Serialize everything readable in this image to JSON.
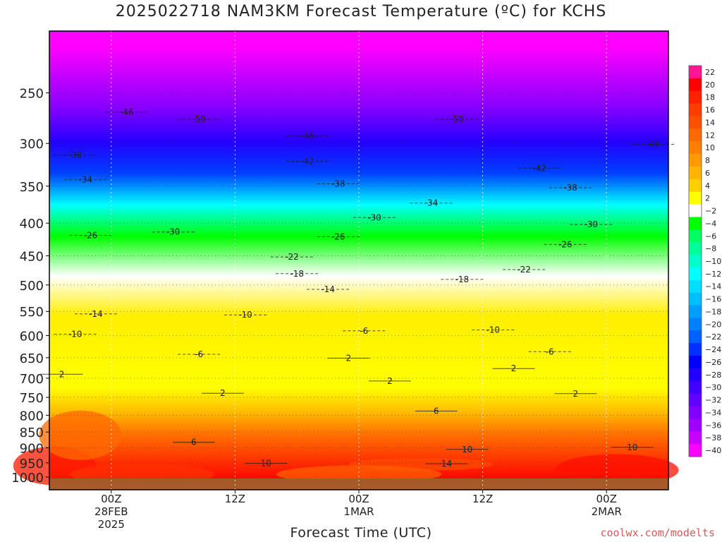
{
  "title": "2025022718 NAM3KM Forecast Temperature (ºC) for KCHS",
  "xlabel": "Forecast Time (UTC)",
  "credit": "coolwx.com/modelts",
  "chart_data": {
    "type": "heatmap",
    "title": "2025022718 NAM3KM Forecast Temperature (ºC) for KCHS",
    "xlabel": "Forecast Time (UTC)",
    "ylabel": "",
    "x_range_hours": [
      0,
      60
    ],
    "y_range_hpa": [
      1000,
      200
    ],
    "y_scale": "log-pressure (inverted)",
    "grid": true,
    "legend_placement": "right colorbar",
    "x_ticks": [
      {
        "hour": 6,
        "labels": [
          "00Z",
          "28FEB",
          "2025"
        ]
      },
      {
        "hour": 18,
        "labels": [
          "12Z"
        ]
      },
      {
        "hour": 30,
        "labels": [
          "00Z",
          "1MAR"
        ]
      },
      {
        "hour": 42,
        "labels": [
          "12Z"
        ]
      },
      {
        "hour": 54,
        "labels": [
          "00Z",
          "2MAR"
        ]
      }
    ],
    "y_ticks": [
      "250",
      "300",
      "350",
      "400",
      "450",
      "500",
      "550",
      "600",
      "650",
      "700",
      "750",
      "800",
      "850",
      "900",
      "950",
      "1000"
    ],
    "y_tick_values": [
      250,
      300,
      350,
      400,
      450,
      500,
      550,
      600,
      650,
      700,
      750,
      800,
      850,
      900,
      950,
      1000
    ],
    "colorbar": {
      "labels": [
        "22",
        "20",
        "18",
        "16",
        "14",
        "12",
        "10",
        "8",
        "6",
        "4",
        "2",
        "−2",
        "−4",
        "−6",
        "−8",
        "−10",
        "−12",
        "−14",
        "−16",
        "−18",
        "−20",
        "−22",
        "−24",
        "−26",
        "−28",
        "−30",
        "−32",
        "−34",
        "−36",
        "−38",
        "−40"
      ],
      "colors": [
        "#ff1493",
        "#ff0000",
        "#ff2000",
        "#ff3c00",
        "#ff5000",
        "#ff6a00",
        "#ff8000",
        "#ff9a00",
        "#ffb400",
        "#ffd000",
        "#ffff00",
        "#ffffff",
        "#00ff00",
        "#00ff60",
        "#00ff99",
        "#00ffcc",
        "#00ffff",
        "#00dfff",
        "#00bfff",
        "#009fff",
        "#007fff",
        "#005fff",
        "#0030ff",
        "#0000ff",
        "#2000ff",
        "#4000ff",
        "#6000ff",
        "#8000ff",
        "#a000ff",
        "#c800ff",
        "#ff00ff"
      ]
    },
    "contours": [
      {
        "label": "-50",
        "hour": 14.5,
        "pressure": 275
      },
      {
        "label": "-50",
        "hour": 39.5,
        "pressure": 275
      },
      {
        "label": "-46",
        "hour": 7.5,
        "pressure": 268
      },
      {
        "label": "-46",
        "hour": 25,
        "pressure": 292
      },
      {
        "label": "-46",
        "hour": 58.5,
        "pressure": 301
      },
      {
        "label": "-42",
        "hour": 25,
        "pressure": 320
      },
      {
        "label": "-42",
        "hour": 47.5,
        "pressure": 328
      },
      {
        "label": "-38",
        "hour": 2.5,
        "pressure": 313
      },
      {
        "label": "-38",
        "hour": 28,
        "pressure": 347
      },
      {
        "label": "-38",
        "hour": 50.5,
        "pressure": 352
      },
      {
        "label": "-34",
        "hour": 3.5,
        "pressure": 342
      },
      {
        "label": "-34",
        "hour": 37,
        "pressure": 372
      },
      {
        "label": "-30",
        "hour": 12,
        "pressure": 413
      },
      {
        "label": "-30",
        "hour": 31.5,
        "pressure": 392
      },
      {
        "label": "-30",
        "hour": 52.5,
        "pressure": 402
      },
      {
        "label": "-26",
        "hour": 4,
        "pressure": 418
      },
      {
        "label": "-26",
        "hour": 28,
        "pressure": 420
      },
      {
        "label": "-26",
        "hour": 50,
        "pressure": 432
      },
      {
        "label": "-22",
        "hour": 23.5,
        "pressure": 452
      },
      {
        "label": "-22",
        "hour": 46,
        "pressure": 473
      },
      {
        "label": "-18",
        "hour": 24,
        "pressure": 480
      },
      {
        "label": "-18",
        "hour": 40,
        "pressure": 490
      },
      {
        "label": "-14",
        "hour": 27,
        "pressure": 508
      },
      {
        "label": "-14",
        "hour": 4.5,
        "pressure": 555
      },
      {
        "label": "-10",
        "hour": 19,
        "pressure": 557
      },
      {
        "label": "-10",
        "hour": 2.5,
        "pressure": 597
      },
      {
        "label": "-10",
        "hour": 43,
        "pressure": 588
      },
      {
        "label": "-6",
        "hour": 14.5,
        "pressure": 642
      },
      {
        "label": "-6",
        "hour": 30.5,
        "pressure": 590
      },
      {
        "label": "-6",
        "hour": 48.5,
        "pressure": 636
      },
      {
        "label": "2",
        "hour": 1.2,
        "pressure": 690
      },
      {
        "label": "2",
        "hour": 29,
        "pressure": 651
      },
      {
        "label": "2",
        "hour": 45,
        "pressure": 676
      },
      {
        "label": "2",
        "hour": 33,
        "pressure": 707
      },
      {
        "label": "2",
        "hour": 16.8,
        "pressure": 739
      },
      {
        "label": "2",
        "hour": 51,
        "pressure": 740
      },
      {
        "label": "6",
        "hour": 37.5,
        "pressure": 788
      },
      {
        "label": "6",
        "hour": 14,
        "pressure": 882
      },
      {
        "label": "10",
        "hour": 40.5,
        "pressure": 905
      },
      {
        "label": "10",
        "hour": 56.5,
        "pressure": 898
      },
      {
        "label": "10",
        "hour": 21,
        "pressure": 952
      },
      {
        "label": "14",
        "hour": 38.5,
        "pressure": 953
      }
    ]
  }
}
